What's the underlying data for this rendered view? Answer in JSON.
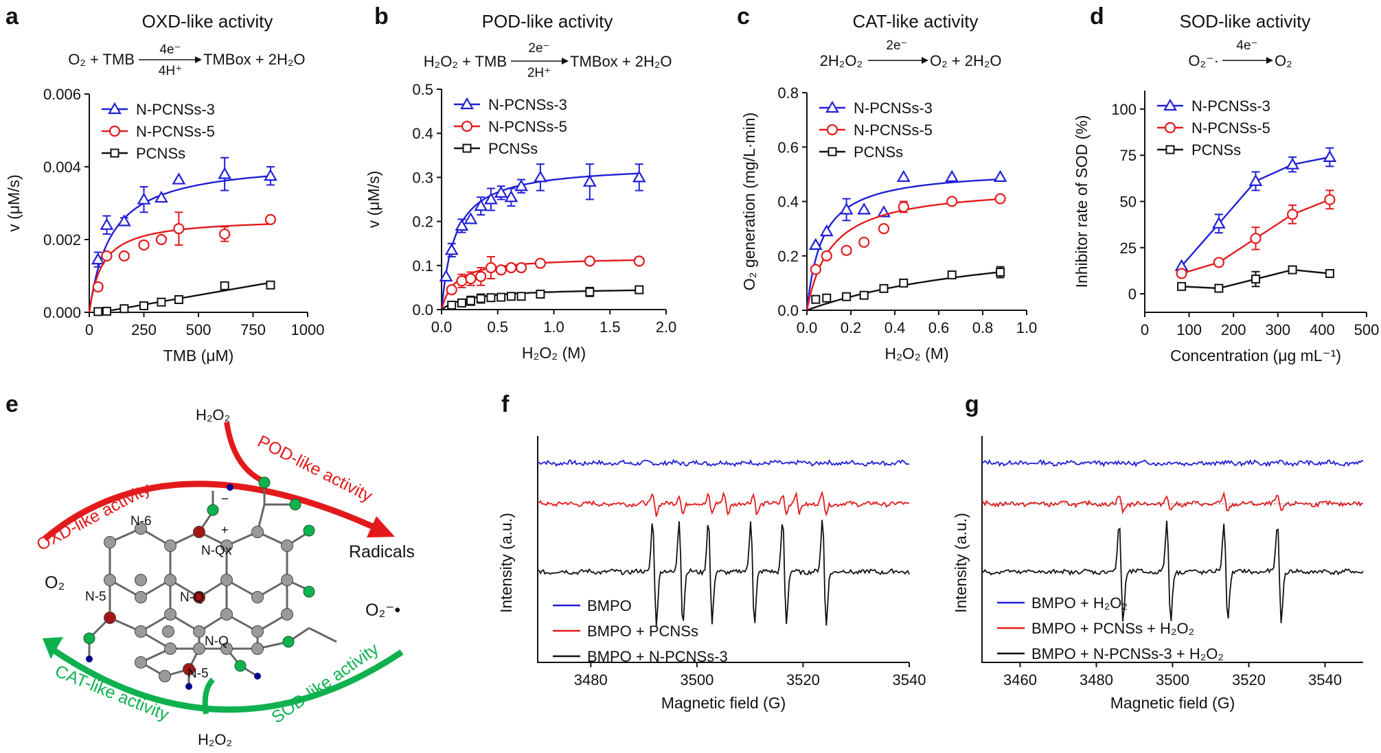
{
  "colors": {
    "n3": "#1f1fd6",
    "n5": "#e31a1c",
    "pc": "#111111",
    "green": "#0fb14f",
    "dark_blue": "#00008b"
  },
  "panel_labels": [
    "a",
    "b",
    "c",
    "d",
    "e",
    "f",
    "g"
  ],
  "equations": {
    "a": {
      "left": "O₂ + TMB",
      "above": "4e⁻",
      "below": "4H⁺",
      "right": "TMBox + 2H₂O"
    },
    "b": {
      "left": "H₂O₂ + TMB",
      "above": "2e⁻",
      "below": "2H⁺",
      "right": "TMBox + 2H₂O"
    },
    "c": {
      "left": "2H₂O₂",
      "above": "2e⁻",
      "below": "",
      "right": "O₂ + 2H₂O"
    },
    "d": {
      "left": "O₂⁻·",
      "above": "4e⁻",
      "below": "",
      "right": "O₂"
    }
  },
  "scheme": {
    "arc_labels": {
      "oxd": "OXD-like activity",
      "pod": "POD-like activity",
      "cat": "CAT-like activity",
      "sod": "SOD-like activity"
    },
    "species": {
      "h2o2_top": "H₂O₂",
      "h2o2_bottom": "H₂O₂",
      "o2": "O₂",
      "superoxide": "O₂⁻•",
      "radicals": "Radicals"
    },
    "atom_labels": [
      "N-6",
      "N-Qx",
      "N-Q",
      "N-5",
      "N-Q",
      "N-5"
    ],
    "charges": [
      "−",
      "+"
    ]
  },
  "chart_data": [
    {
      "panel": "a",
      "type": "scatter",
      "title": "OXD-like activity",
      "xlabel": "TMB (μM)",
      "ylabel": "v (μM/s)",
      "xlim": [
        0,
        1000
      ],
      "ylim": [
        0,
        0.006
      ],
      "xticks": [
        "0",
        "250",
        "500",
        "750",
        "1000"
      ],
      "yticks": [
        "0.000",
        "0.002",
        "0.004",
        "0.006"
      ],
      "legend_position": "top-left",
      "series": [
        {
          "name": "N-PCNSs-3",
          "marker": "triangle",
          "x": [
            40,
            80,
            160,
            250,
            330,
            410,
            620,
            830
          ],
          "y": [
            0.00145,
            0.0024,
            0.0025,
            0.0031,
            0.00315,
            0.00365,
            0.0038,
            0.00375
          ],
          "err": [
            0.0002,
            0.00025,
            0.0001,
            0.00035,
            0,
            0,
            0.00045,
            0.00025
          ],
          "fit": {
            "vmax": 0.0042,
            "km": 100
          }
        },
        {
          "name": "N-PCNSs-5",
          "marker": "circle",
          "x": [
            40,
            80,
            160,
            250,
            330,
            410,
            620,
            830
          ],
          "y": [
            0.0007,
            0.00155,
            0.00155,
            0.00185,
            0.002,
            0.0023,
            0.00215,
            0.00255
          ],
          "err": [
            0,
            0,
            0,
            0.0001,
            0,
            0.00045,
            0.0002,
            0
          ],
          "fit": {
            "vmax": 0.0026,
            "km": 60
          }
        },
        {
          "name": "PCNSs",
          "marker": "square",
          "x": [
            40,
            80,
            160,
            250,
            330,
            410,
            620,
            830
          ],
          "y": [
            2e-05,
            3e-05,
            0.0001,
            0.00018,
            0.00028,
            0.00035,
            0.00073,
            0.00075
          ],
          "err": [
            0,
            0,
            0,
            0,
            0,
            0,
            0,
            0
          ],
          "fit": {
            "linear": true
          }
        }
      ]
    },
    {
      "panel": "b",
      "type": "scatter",
      "title": "POD-like activity",
      "xlabel": "H₂O₂ (M)",
      "ylabel": "v (μM/s)",
      "xlim": [
        0,
        2.0
      ],
      "ylim": [
        0,
        0.5
      ],
      "xticks": [
        "0.0",
        "0.5",
        "1.0",
        "1.5",
        "2.0"
      ],
      "yticks": [
        "0.0",
        "0.1",
        "0.2",
        "0.3",
        "0.4",
        "0.5"
      ],
      "legend_position": "top-left",
      "series": [
        {
          "name": "N-PCNSs-3",
          "marker": "triangle",
          "x": [
            0.04,
            0.09,
            0.18,
            0.26,
            0.35,
            0.44,
            0.53,
            0.62,
            0.71,
            0.88,
            1.32,
            1.76
          ],
          "y": [
            0.075,
            0.135,
            0.19,
            0.205,
            0.235,
            0.25,
            0.265,
            0.255,
            0.28,
            0.3,
            0.29,
            0.3
          ],
          "err": [
            0,
            0.015,
            0.015,
            0,
            0.02,
            0.025,
            0.015,
            0.02,
            0.015,
            0.03,
            0.04,
            0.03
          ],
          "fit": {
            "vmax": 0.33,
            "km": 0.12
          }
        },
        {
          "name": "N-PCNSs-5",
          "marker": "circle",
          "x": [
            0.09,
            0.18,
            0.26,
            0.35,
            0.44,
            0.53,
            0.62,
            0.71,
            0.88,
            1.32,
            1.76
          ],
          "y": [
            0.045,
            0.065,
            0.07,
            0.075,
            0.095,
            0.09,
            0.095,
            0.095,
            0.105,
            0.11,
            0.11
          ],
          "err": [
            0,
            0.015,
            0.015,
            0.02,
            0.025,
            0,
            0,
            0,
            0,
            0,
            0
          ],
          "fit": {
            "vmax": 0.12,
            "km": 0.12
          }
        },
        {
          "name": "PCNSs",
          "marker": "square",
          "x": [
            0.09,
            0.18,
            0.26,
            0.35,
            0.44,
            0.53,
            0.62,
            0.71,
            0.88,
            1.32,
            1.76
          ],
          "y": [
            0.01,
            0.015,
            0.02,
            0.025,
            0.027,
            0.028,
            0.03,
            0.03,
            0.035,
            0.04,
            0.045
          ],
          "err": [
            0,
            0.005,
            0.01,
            0.01,
            0,
            0,
            0,
            0,
            0,
            0.01,
            0
          ],
          "fit": {
            "vmax": 0.05,
            "km": 0.25
          }
        }
      ]
    },
    {
      "panel": "c",
      "type": "scatter",
      "title": "CAT-like activity",
      "xlabel": "H₂O₂ (M)",
      "ylabel": "O₂ generation (mg/L·min)",
      "xlim": [
        0,
        1.0
      ],
      "ylim": [
        0,
        0.8
      ],
      "xticks": [
        "0.0",
        "0.2",
        "0.4",
        "0.6",
        "0.8",
        "1.0"
      ],
      "yticks": [
        "0.0",
        "0.2",
        "0.4",
        "0.6",
        "0.8"
      ],
      "legend_position": "top-left",
      "series": [
        {
          "name": "N-PCNSs-3",
          "marker": "triangle",
          "x": [
            0.04,
            0.09,
            0.18,
            0.26,
            0.35,
            0.44,
            0.66,
            0.88
          ],
          "y": [
            0.24,
            0.29,
            0.37,
            0.37,
            0.36,
            0.49,
            0.49,
            0.49
          ],
          "err": [
            0,
            0,
            0.04,
            0,
            0,
            0,
            0,
            0
          ],
          "fit": {
            "vmax": 0.52,
            "km": 0.07
          }
        },
        {
          "name": "N-PCNSs-5",
          "marker": "circle",
          "x": [
            0.04,
            0.09,
            0.18,
            0.26,
            0.35,
            0.44,
            0.66,
            0.88
          ],
          "y": [
            0.15,
            0.2,
            0.22,
            0.25,
            0.3,
            0.38,
            0.4,
            0.41
          ],
          "err": [
            0,
            0,
            0,
            0,
            0,
            0.02,
            0,
            0
          ],
          "fit": {
            "vmax": 0.46,
            "km": 0.11
          }
        },
        {
          "name": "PCNSs",
          "marker": "square",
          "x": [
            0.04,
            0.09,
            0.18,
            0.26,
            0.35,
            0.44,
            0.66,
            0.88
          ],
          "y": [
            0.04,
            0.045,
            0.05,
            0.055,
            0.08,
            0.1,
            0.13,
            0.14
          ],
          "err": [
            0,
            0,
            0,
            0,
            0,
            0,
            0,
            0.02
          ],
          "fit": {
            "vmax": 0.3,
            "km": 1.0
          }
        }
      ]
    },
    {
      "panel": "d",
      "type": "line",
      "title": "SOD-like activity",
      "xlabel": "Concentration (μg mL⁻¹)",
      "ylabel": "Inhibitor rate of SOD (%)",
      "xlim": [
        0,
        500
      ],
      "ylim": [
        -10,
        110
      ],
      "xticks": [
        "0",
        "100",
        "200",
        "300",
        "400",
        "500"
      ],
      "yticks": [
        "0",
        "25",
        "50",
        "75",
        "100"
      ],
      "legend_position": "top-left",
      "series": [
        {
          "name": "N-PCNSs-3",
          "marker": "triangle",
          "x": [
            83,
            167,
            250,
            333,
            417
          ],
          "y": [
            15,
            38,
            61,
            70,
            74
          ],
          "err": [
            0,
            5,
            5,
            4,
            5
          ]
        },
        {
          "name": "N-PCNSs-5",
          "marker": "circle",
          "x": [
            83,
            167,
            250,
            333,
            417
          ],
          "y": [
            11,
            17,
            30,
            43,
            51
          ],
          "err": [
            0,
            0,
            6,
            5,
            5
          ]
        },
        {
          "name": "PCNSs",
          "marker": "square",
          "x": [
            83,
            167,
            250,
            333,
            417
          ],
          "y": [
            4,
            3,
            8,
            13,
            11
          ],
          "err": [
            0,
            0,
            4,
            0,
            0
          ]
        }
      ]
    },
    {
      "panel": "f",
      "type": "line",
      "title": "",
      "xlabel": "Magnetic field (G)",
      "ylabel": "Intensity (a.u.)",
      "xlim": [
        3470,
        3540
      ],
      "xticks": [
        "3480",
        "3500",
        "3520",
        "3540"
      ],
      "legend_position": "bottom-left",
      "series": [
        {
          "name": "BMPO",
          "baseline": 0.88,
          "lines": [],
          "amplitude": 0
        },
        {
          "name": "BMPO + PCNSs",
          "baseline": 0.7,
          "lines": [
            3492,
            3497,
            3502.5,
            3505.5,
            3511,
            3516.5,
            3519,
            3524
          ],
          "amplitude": 0.06
        },
        {
          "name": "BMPO + N-PCNSs-3",
          "baseline": 0.4,
          "lines": [
            3492,
            3497,
            3502.5,
            3510.5,
            3516.5,
            3524
          ],
          "amplitude": 0.32
        }
      ]
    },
    {
      "panel": "g",
      "type": "line",
      "title": "",
      "xlabel": "Magnetic field (G)",
      "ylabel": "Intensity (a.u.)",
      "xlim": [
        3450,
        3550
      ],
      "xticks": [
        "3460",
        "3480",
        "3500",
        "3520",
        "3540"
      ],
      "legend_position": "bottom-left",
      "series": [
        {
          "name": "BMPO + H₂O₂",
          "baseline": 0.88,
          "lines": [],
          "amplitude": 0
        },
        {
          "name": "BMPO + PCNSs + H₂O₂",
          "baseline": 0.7,
          "lines": [
            3486.5,
            3499,
            3514,
            3528
          ],
          "amplitude": 0.05
        },
        {
          "name": "BMPO + N-PCNSs-3 + H₂O₂",
          "baseline": 0.4,
          "lines": [
            3486.5,
            3499,
            3514,
            3528
          ],
          "amplitude": 0.3
        }
      ]
    }
  ]
}
